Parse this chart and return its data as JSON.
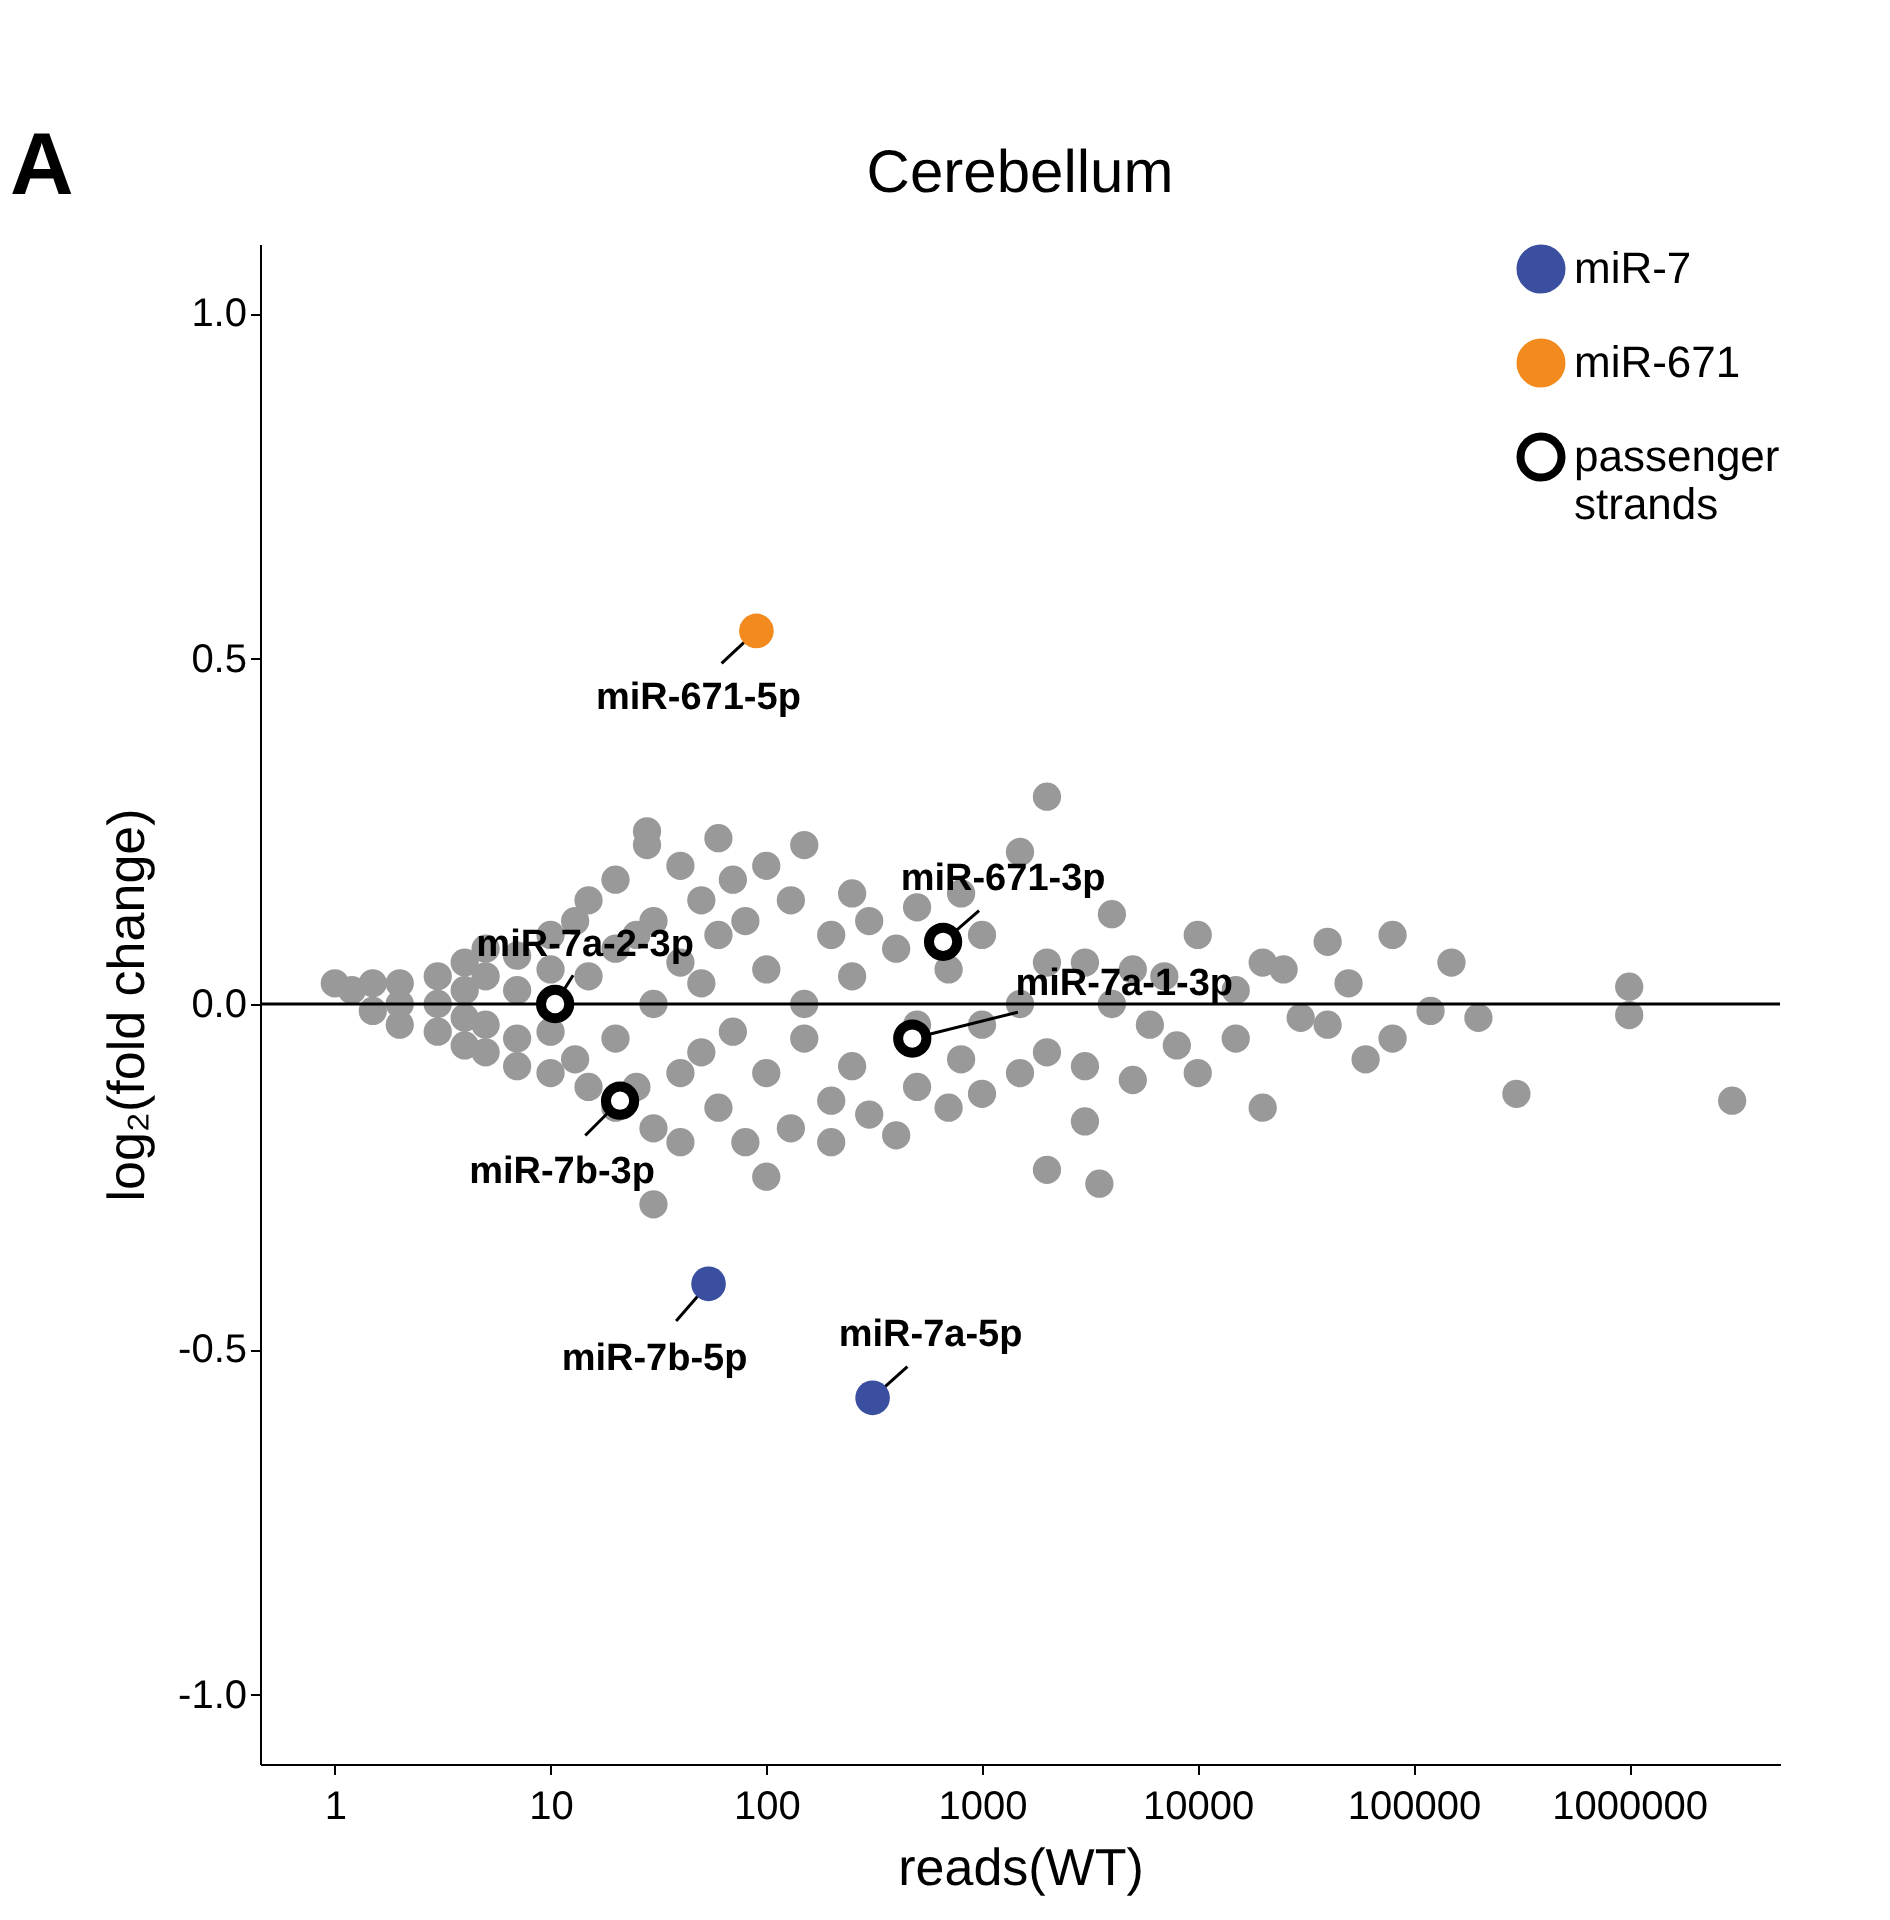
{
  "chart_data": {
    "type": "scatter",
    "title": "Cerebellum",
    "xlabel": "reads(WT)",
    "ylabel": "log₂(fold change)",
    "log": "x",
    "xlim": [
      0.45,
      5000000
    ],
    "xticks": [
      1,
      10,
      100,
      1000,
      10000,
      100000,
      1000000
    ],
    "ylim": [
      -1.1,
      1.1
    ],
    "yticks": [
      {
        "value": -1,
        "label": "-1.0"
      },
      {
        "value": -0.5,
        "label": "-0.5"
      },
      {
        "value": 0,
        "label": "0.0"
      },
      {
        "value": 0.5,
        "label": "0.5"
      },
      {
        "value": 1,
        "label": "1.0"
      }
    ],
    "grid": false,
    "legend": "top right",
    "marker": "circle",
    "ref_lines": [
      {
        "axis": "y",
        "value": 0,
        "color": "#000000"
      }
    ],
    "series": [
      {
        "color": "#999999",
        "x": [
          1,
          1.2,
          1.5,
          1.5,
          2,
          2,
          2,
          3,
          3,
          3,
          4,
          4,
          4,
          4,
          5,
          5,
          5,
          5,
          7,
          7,
          7,
          7,
          10,
          10,
          10,
          10,
          13,
          13,
          15,
          15,
          15,
          20,
          20,
          20,
          20,
          25,
          25,
          28,
          28,
          30,
          30,
          30,
          30,
          40,
          40,
          40,
          40,
          50,
          50,
          50,
          60,
          60,
          60,
          70,
          70,
          80,
          80,
          100,
          100,
          100,
          100,
          130,
          130,
          150,
          150,
          150,
          200,
          200,
          200,
          250,
          250,
          250,
          300,
          300,
          400,
          400,
          500,
          500,
          500,
          700,
          700,
          800,
          800,
          1000,
          1000,
          1000,
          1500,
          1500,
          1500,
          2000,
          2000,
          2000,
          2000,
          3000,
          3000,
          3000,
          3500,
          4000,
          4000,
          5000,
          5000,
          6000,
          7000,
          8000,
          10000,
          10000,
          15000,
          15000,
          20000,
          20000,
          25000,
          30000,
          40000,
          40000,
          50000,
          60000,
          80000,
          80000,
          120000,
          150000,
          200000,
          300000,
          1000000,
          1000000,
          3000000
        ],
        "values": [
          0.03,
          0.02,
          0.03,
          -0.01,
          0.03,
          0,
          -0.03,
          0.04,
          0,
          -0.04,
          0.06,
          0.02,
          -0.02,
          -0.06,
          0.08,
          0.04,
          -0.03,
          -0.07,
          0.07,
          0.02,
          -0.05,
          -0.09,
          0.1,
          0.05,
          -0.04,
          -0.1,
          0.12,
          -0.08,
          0.15,
          0.04,
          -0.12,
          0.18,
          0.08,
          -0.05,
          -0.15,
          0.1,
          -0.12,
          0.25,
          0.23,
          0.12,
          0,
          -0.18,
          -0.29,
          0.2,
          0.06,
          -0.1,
          -0.2,
          0.15,
          0.03,
          -0.07,
          0.24,
          0.1,
          -0.15,
          0.18,
          -0.04,
          0.12,
          -0.2,
          0.2,
          0.05,
          -0.1,
          -0.25,
          0.15,
          -0.18,
          0.23,
          0,
          -0.05,
          0.1,
          -0.14,
          -0.2,
          0.16,
          0.04,
          -0.09,
          0.12,
          -0.16,
          0.08,
          -0.19,
          0.14,
          -0.03,
          -0.12,
          0.05,
          -0.15,
          0.16,
          -0.08,
          0.1,
          -0.03,
          -0.13,
          0.22,
          0,
          -0.1,
          0.3,
          0.06,
          -0.07,
          -0.24,
          0.06,
          -0.09,
          -0.17,
          -0.26,
          0.13,
          0,
          0.05,
          -0.11,
          -0.03,
          0.04,
          -0.06,
          0.1,
          -0.1,
          0.02,
          -0.05,
          0.06,
          -0.15,
          0.05,
          -0.02,
          0.09,
          -0.03,
          0.03,
          -0.08,
          0.1,
          -0.05,
          -0.01,
          0.06,
          -0.02,
          -0.13,
          0.025,
          -0.016,
          -0.14
        ]
      },
      {
        "name": "miR-7",
        "color": "#3a4fa0",
        "x": [
          54,
          311
        ],
        "values": [
          -0.405,
          -0.57
        ]
      },
      {
        "name": "miR-671",
        "color": "#f28a1e",
        "x": [
          90
        ],
        "values": [
          0.54
        ]
      },
      {
        "name": "passenger strands",
        "color": "#000000",
        "x": [
          10.5,
          21,
          660,
          475
        ],
        "values": [
          0,
          -0.14,
          0.09,
          -0.05
        ]
      }
    ],
    "annotations": [
      "A",
      {
        "text": "miR-671-5p",
        "x": 90,
        "y": 0.54
      },
      {
        "text": "miR-7b-5p",
        "x": 54,
        "y": -0.405
      },
      {
        "text": "miR-7a-5p",
        "x": 311,
        "y": -0.57
      },
      {
        "text": "miR-7a-2-3p",
        "x": 10.5,
        "y": 0
      },
      {
        "text": "miR-7b-3p",
        "x": 21,
        "y": -0.14
      },
      {
        "text": "miR-671-3p",
        "x": 660,
        "y": 0.09
      },
      {
        "text": "miR-7a-1-3p",
        "x": 475,
        "y": -0.05
      }
    ]
  }
}
